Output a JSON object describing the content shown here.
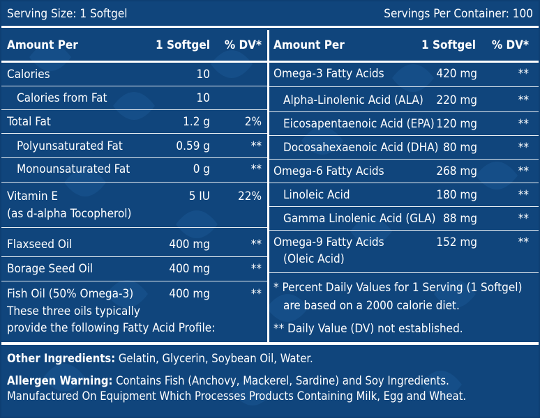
{
  "header": {
    "serving_size": "Serving Size: 1 Softgel",
    "servings_per_container": "Servings Per Container: 100"
  },
  "columns": {
    "amount_per": "Amount Per",
    "per_unit": "1 Softgel",
    "dv": "% DV*"
  },
  "left_rows": [
    {
      "name": "Calories",
      "amount": "10",
      "dv": ""
    },
    {
      "name": "Calories from Fat",
      "amount": "10",
      "dv": ""
    },
    {
      "name": "Total Fat",
      "amount": "1.2 g",
      "dv": "2%"
    },
    {
      "name": "Polyunsaturated Fat",
      "amount": "0.59 g",
      "dv": "**"
    },
    {
      "name": "Monounsaturated Fat",
      "amount": "0 g",
      "dv": "**"
    },
    {
      "name": "Vitamin E",
      "name2": "(as d-alpha Tocopherol)",
      "amount": "5 IU",
      "dv": "22%"
    },
    {
      "name": "Flaxseed Oil",
      "amount": "400 mg",
      "dv": "**"
    },
    {
      "name": "Borage Seed Oil",
      "amount": "400 mg",
      "dv": "**"
    },
    {
      "name": "Fish Oil (50% Omega-3)",
      "amount": "400 mg",
      "dv": "**"
    }
  ],
  "left_note": [
    "These three oils typically",
    "provide the following Fatty Acid Profile:"
  ],
  "right_rows": [
    {
      "name": "Omega-3 Fatty Acids",
      "amount": "420 mg",
      "dv": "**"
    },
    {
      "name": "Alpha-Linolenic Acid (ALA)",
      "amount": "220 mg",
      "dv": "**"
    },
    {
      "name": "Eicosapentaenoic Acid (EPA)",
      "amount": "120 mg",
      "dv": "**"
    },
    {
      "name": "Docosahexaenoic Acid (DHA)",
      "amount": "80 mg",
      "dv": "**"
    },
    {
      "name": "Omega-6 Fatty Acids",
      "amount": "268 mg",
      "dv": "**"
    },
    {
      "name": "Linoleic Acid",
      "amount": "180 mg",
      "dv": "**"
    },
    {
      "name": "Gamma Linolenic Acid (GLA)",
      "amount": "88 mg",
      "dv": "**"
    },
    {
      "name": "Omega-9 Fatty Acids",
      "name2": "(Oleic Acid)",
      "amount": "152 mg",
      "dv": "**"
    }
  ],
  "footnotes": {
    "dv_line1": "* Percent Daily Values for 1 Serving (1 Softgel)",
    "dv_line2": "are based on a 2000 calorie diet.",
    "not_established": "** Daily Value (DV) not established."
  },
  "bottom": {
    "other_label": "Other Ingredients:",
    "other_text": " Gelatin, Glycerin, Soybean Oil, Water.",
    "allergen_label": "Allergen Warning:",
    "allergen_text": " Contains Fish (Anchovy, Mackerel, Sardine) and Soy Ingredients.",
    "manufactured": "Manufactured On Equipment Which Processes Products Containing Milk, Egg and Wheat."
  }
}
